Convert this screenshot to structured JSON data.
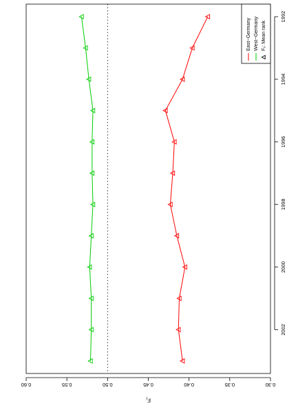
{
  "chart_data": {
    "type": "line",
    "title": "",
    "xlabel": "",
    "ylabel": "F̂_r",
    "ylabel_main": "F",
    "ylabel_sub": "r",
    "x": [
      1992,
      1993,
      1994,
      1995,
      1996,
      1997,
      1998,
      1999,
      2000,
      2001,
      2002,
      2003
    ],
    "xlim": [
      1991.6,
      2003.4
    ],
    "ylim": [
      0.6,
      0.3
    ],
    "x_ticks": [
      1992,
      1994,
      1996,
      1998,
      2000,
      2002
    ],
    "y_ticks": [
      0.6,
      0.55,
      0.5,
      0.45,
      0.4,
      0.35,
      0.3
    ],
    "y_tick_labels": [
      "0.60",
      "0.55",
      "0.50",
      "0.45",
      "0.40",
      "0.35",
      "0.30"
    ],
    "reference_line": 0.5,
    "grid": false,
    "legend_position": "top-right",
    "legend": {
      "marker_label": "F̂_r: Mean rank",
      "marker_main": "F",
      "marker_sub": "r",
      "marker_rest": ": Mean rank"
    },
    "series": [
      {
        "name": "West−Germany",
        "color": "#00cc00",
        "values": [
          0.532,
          0.527,
          0.523,
          0.518,
          0.519,
          0.519,
          0.518,
          0.52,
          0.522,
          0.52,
          0.52,
          0.521
        ]
      },
      {
        "name": "East−Germany",
        "color": "#ff0000",
        "values": [
          0.377,
          0.396,
          0.408,
          0.429,
          0.418,
          0.42,
          0.423,
          0.415,
          0.405,
          0.412,
          0.413,
          0.408
        ]
      }
    ]
  }
}
